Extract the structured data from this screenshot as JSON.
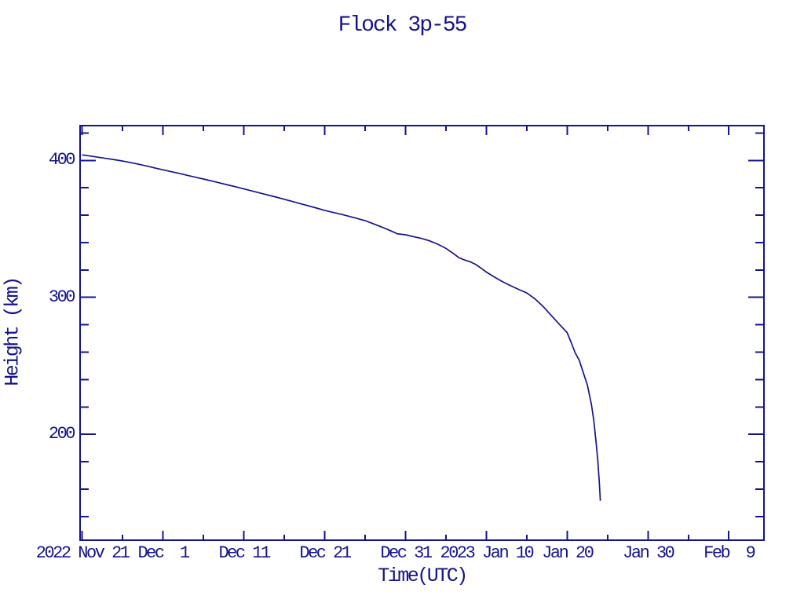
{
  "page": {
    "background": "#ffffff",
    "accent": "#14148c"
  },
  "chart_data": {
    "type": "line",
    "title": "Flock 3p-55",
    "xlabel": "Time(UTC)",
    "ylabel": "Height (km)",
    "grid": false,
    "legend": false,
    "line_color": "#14148c",
    "x_axis": {
      "unit": "days since 2022 Nov 21 00:00 UTC",
      "min": -0.16,
      "max": 84.25,
      "major_ticks": [
        {
          "day": 0,
          "label": "2022 Nov 21"
        },
        {
          "day": 10,
          "label": "Dec  1"
        },
        {
          "day": 20,
          "label": "Dec 11"
        },
        {
          "day": 30,
          "label": "Dec 21"
        },
        {
          "day": 40,
          "label": "Dec 31"
        },
        {
          "day": 50,
          "label": "2023 Jan 10"
        },
        {
          "day": 60,
          "label": "Jan 20"
        },
        {
          "day": 70,
          "label": "Jan 30"
        },
        {
          "day": 80,
          "label": "Feb  9"
        }
      ],
      "minor_tick_days": [
        5,
        15,
        25,
        35,
        45,
        55,
        65,
        75
      ]
    },
    "y_axis": {
      "unit": "km",
      "min": 123.3,
      "max": 424.8,
      "major_ticks": [
        {
          "value": 400,
          "label": "400"
        },
        {
          "value": 300,
          "label": "300"
        },
        {
          "value": 200,
          "label": "200"
        }
      ],
      "minor_tick_values": [
        140,
        160,
        180,
        220,
        240,
        260,
        280,
        320,
        340,
        360,
        380,
        420
      ]
    },
    "series": [
      {
        "name": "Flock 3p-55 orbital height",
        "color": "#14148c",
        "day_zero": "2022 Nov 21",
        "points_day_km": [
          [
            0,
            404.0
          ],
          [
            1,
            403.2
          ],
          [
            2,
            402.3
          ],
          [
            3,
            401.4
          ],
          [
            4,
            400.5
          ],
          [
            5,
            399.5
          ],
          [
            6,
            398.4
          ],
          [
            7,
            397.2
          ],
          [
            8,
            395.9
          ],
          [
            9,
            394.5
          ],
          [
            10,
            393.1
          ],
          [
            11,
            391.8
          ],
          [
            12,
            390.5
          ],
          [
            13,
            389.1
          ],
          [
            14,
            387.7
          ],
          [
            15,
            386.4
          ],
          [
            16,
            385.0
          ],
          [
            17,
            383.6
          ],
          [
            18,
            382.1
          ],
          [
            19,
            380.7
          ],
          [
            20,
            379.2
          ],
          [
            21,
            377.7
          ],
          [
            22,
            376.2
          ],
          [
            23,
            374.7
          ],
          [
            24,
            373.2
          ],
          [
            25,
            371.6
          ],
          [
            26,
            370.0
          ],
          [
            27,
            368.4
          ],
          [
            28,
            366.8
          ],
          [
            29,
            365.2
          ],
          [
            30,
            363.5
          ],
          [
            31,
            362.1
          ],
          [
            32,
            360.7
          ],
          [
            33,
            359.2
          ],
          [
            34,
            357.6
          ],
          [
            35,
            356.0
          ],
          [
            36,
            353.8
          ],
          [
            37,
            351.5
          ],
          [
            38,
            349.0
          ],
          [
            39,
            346.4
          ],
          [
            40,
            345.7
          ],
          [
            41,
            344.3
          ],
          [
            42,
            343.0
          ],
          [
            43,
            341.2
          ],
          [
            44,
            338.8
          ],
          [
            45,
            335.8
          ],
          [
            45.8,
            332.5
          ],
          [
            46.6,
            329.0
          ],
          [
            47.3,
            327.3
          ],
          [
            48,
            326.0
          ],
          [
            48.7,
            324.0
          ],
          [
            49.3,
            321.5
          ],
          [
            50,
            318.5
          ],
          [
            51,
            314.8
          ],
          [
            52,
            311.5
          ],
          [
            53,
            308.5
          ],
          [
            54,
            305.8
          ],
          [
            55,
            303.2
          ],
          [
            56,
            299.0
          ],
          [
            57,
            293.5
          ],
          [
            58,
            287.0
          ],
          [
            59,
            280.5
          ],
          [
            60,
            274.3
          ],
          [
            60.5,
            267.0
          ],
          [
            61,
            259.5
          ],
          [
            61.5,
            254.0
          ],
          [
            62,
            245.0
          ],
          [
            62.5,
            236.0
          ],
          [
            63,
            222.0
          ],
          [
            63.3,
            210.0
          ],
          [
            63.6,
            193.0
          ],
          [
            63.8,
            180.0
          ],
          [
            64.0,
            163.0
          ],
          [
            64.1,
            151.5
          ]
        ]
      }
    ],
    "start_point": {
      "date": "2022 Nov 21",
      "height_km": 404
    },
    "end_point": {
      "date": "2023 Jan 24",
      "height_km": 151.5
    }
  }
}
